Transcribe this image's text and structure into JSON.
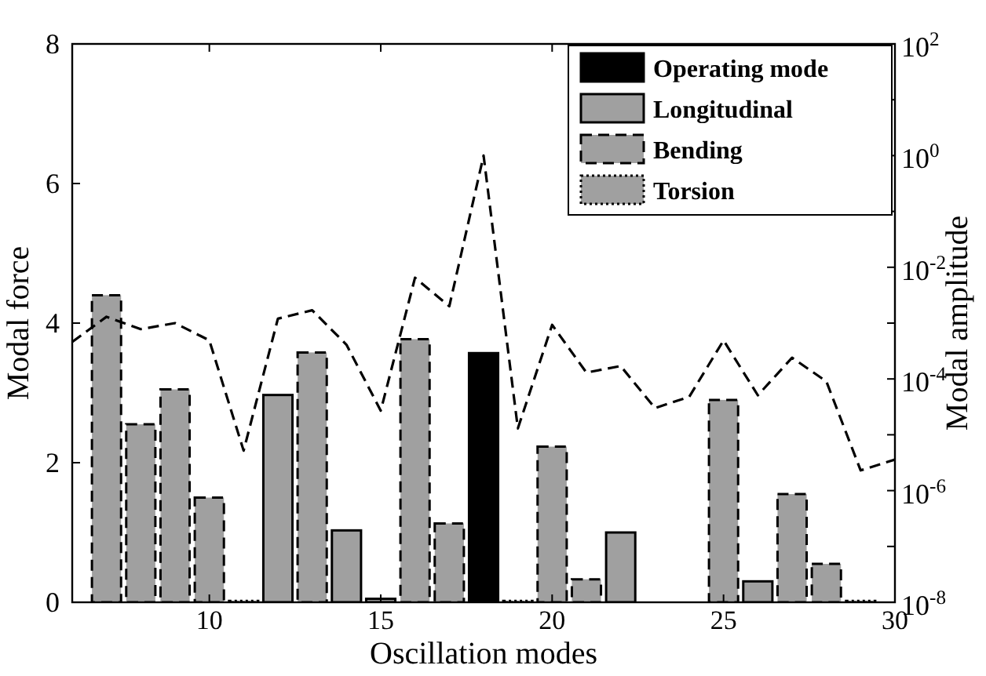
{
  "chart_data": {
    "type": "bar",
    "xlabel": "Oscillation modes",
    "ylabel": "Modal force",
    "y2label": "Modal amplitude",
    "x": [
      6,
      7,
      8,
      9,
      10,
      11,
      12,
      13,
      14,
      15,
      16,
      17,
      18,
      19,
      20,
      21,
      22,
      23,
      24,
      25,
      26,
      27,
      28,
      29,
      30
    ],
    "xlim": [
      6,
      30
    ],
    "xticks": [
      10,
      15,
      20,
      25,
      30
    ],
    "ylim": [
      0,
      8
    ],
    "yticks": [
      0,
      2,
      4,
      6,
      8
    ],
    "y2lim": [
      1e-08,
      100
    ],
    "y2ticks": [
      {
        "value": 1e-08,
        "label": "10$^{-8}$"
      },
      {
        "value": 1e-07,
        "label": null
      },
      {
        "value": 1e-06,
        "label": "10$^{-6}$"
      },
      {
        "value": 1e-05,
        "label": null
      },
      {
        "value": 0.0001,
        "label": "10$^{-4}$"
      },
      {
        "value": 0.001,
        "label": null
      },
      {
        "value": 0.01,
        "label": "10$^{-2}$"
      },
      {
        "value": 0.1,
        "label": null
      },
      {
        "value": 1,
        "label": "10$^{0}$"
      },
      {
        "value": 10,
        "label": null
      },
      {
        "value": 100,
        "label": "10$^{2}$"
      }
    ],
    "log": "y2",
    "legend": "top right",
    "series": [
      {
        "name": "Operating mode",
        "color": "#000000",
        "line_style": "solid",
        "values": [
          null,
          null,
          null,
          null,
          null,
          null,
          null,
          null,
          null,
          null,
          null,
          null,
          3.57,
          null,
          null,
          null,
          null,
          null,
          null,
          null,
          null,
          null,
          null,
          null,
          null
        ]
      },
      {
        "name": "Longitudinal",
        "color": "#a0a0a0",
        "line_style": "solid",
        "values": [
          null,
          null,
          null,
          null,
          null,
          null,
          2.97,
          null,
          1.03,
          0.05,
          null,
          null,
          null,
          null,
          null,
          null,
          1.0,
          null,
          null,
          null,
          0.3,
          null,
          null,
          null,
          null
        ]
      },
      {
        "name": "Bending",
        "color": "#a0a0a0",
        "line_style": "dashed",
        "values": [
          null,
          4.4,
          2.55,
          3.05,
          1.5,
          null,
          null,
          3.58,
          null,
          null,
          3.77,
          1.13,
          null,
          null,
          2.23,
          0.33,
          null,
          null,
          null,
          2.9,
          null,
          1.55,
          0.55,
          null,
          null
        ]
      },
      {
        "name": "Torsion",
        "color": "#a0a0a0",
        "line_style": "dotted",
        "values": [
          null,
          null,
          null,
          null,
          null,
          0.02,
          null,
          null,
          null,
          null,
          null,
          null,
          null,
          0.02,
          null,
          null,
          null,
          null,
          null,
          null,
          null,
          null,
          null,
          0.02,
          null
        ]
      },
      {
        "type": "line",
        "axis": "y2",
        "color": "#000000",
        "line_style": "dashed",
        "values": [
          0.00046,
          0.0013,
          0.00078,
          0.001,
          0.00049,
          5.2e-06,
          0.0012,
          0.0017,
          0.00041,
          2.7e-05,
          0.0065,
          0.002,
          1,
          1.3e-05,
          0.00093,
          0.00013,
          0.00017,
          3e-05,
          4.8e-05,
          0.00049,
          5.1e-05,
          0.00024,
          9e-05,
          2.3e-06,
          3.6e-06
        ]
      }
    ]
  }
}
